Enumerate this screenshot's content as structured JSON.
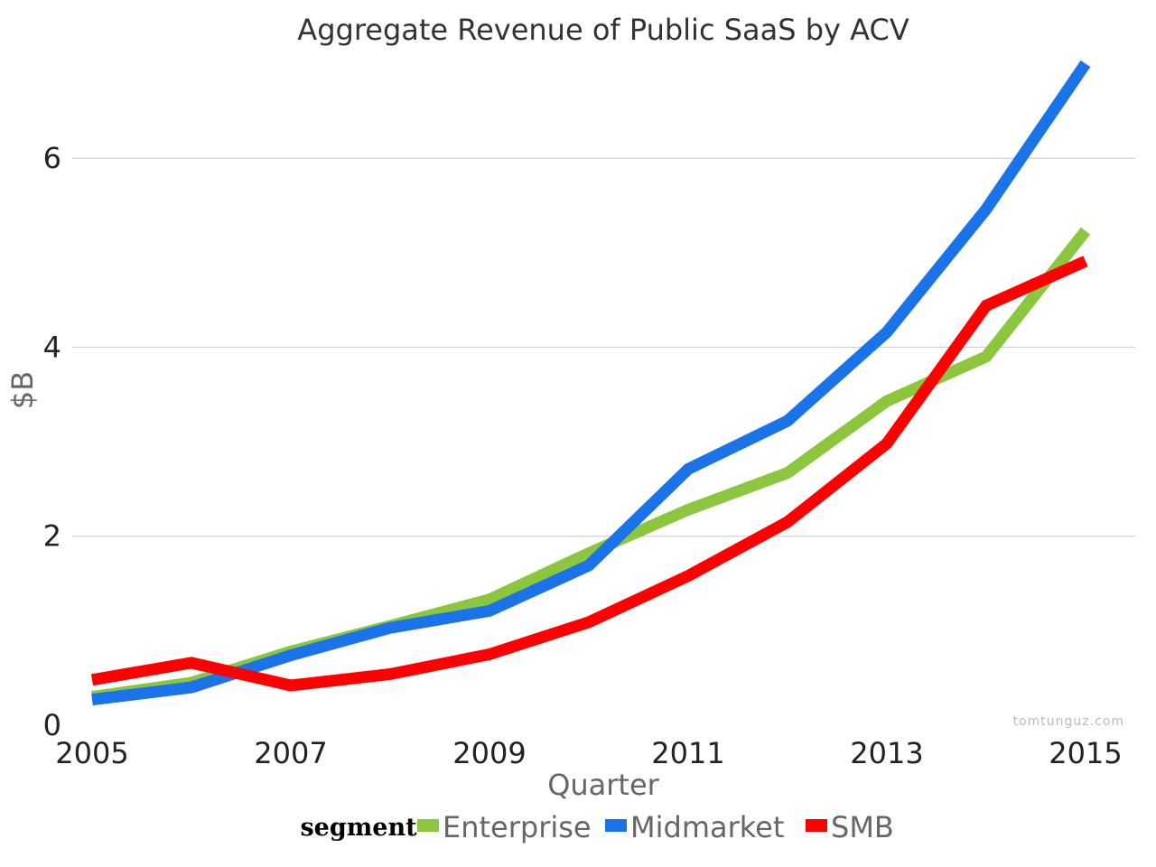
{
  "chart_data": {
    "type": "line",
    "title": "Aggregate Revenue of Public SaaS by ACV",
    "xlabel": "Quarter",
    "ylabel": "$B",
    "x": [
      2005,
      2006,
      2007,
      2008,
      2009,
      2010,
      2011,
      2012,
      2013,
      2014,
      2015
    ],
    "x_ticks": [
      "2005",
      "2007",
      "2009",
      "2011",
      "2013",
      "2015"
    ],
    "y_ticks": [
      "0",
      "2",
      "4",
      "6"
    ],
    "xlim": [
      2004.8,
      2015.5
    ],
    "ylim": [
      0,
      7.1
    ],
    "grid": true,
    "legend": {
      "title": "segment",
      "placement": "bottom"
    },
    "series": [
      {
        "name": "Enterprise",
        "color": "#8cc63f",
        "values": [
          0.3,
          0.45,
          0.78,
          1.05,
          1.33,
          1.82,
          2.28,
          2.67,
          3.43,
          3.9,
          5.23
        ]
      },
      {
        "name": "Midmarket",
        "color": "#1a73e8",
        "values": [
          0.27,
          0.4,
          0.74,
          1.03,
          1.21,
          1.69,
          2.71,
          3.22,
          4.16,
          5.46,
          7.0
        ]
      },
      {
        "name": "SMB",
        "color": "#ff0000",
        "values": [
          0.48,
          0.66,
          0.42,
          0.54,
          0.75,
          1.09,
          1.58,
          2.15,
          2.98,
          4.44,
          4.91
        ]
      }
    ],
    "watermark": "tomtunguz.com"
  }
}
